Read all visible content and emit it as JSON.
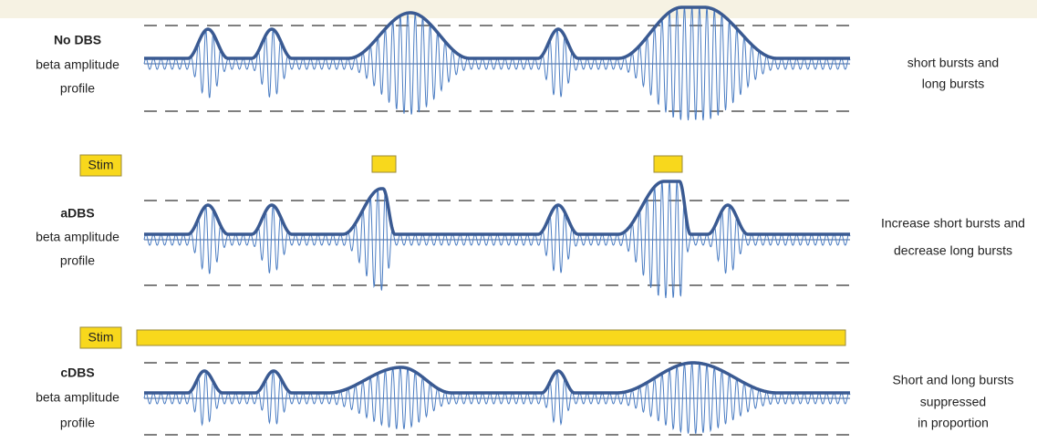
{
  "rows": [
    {
      "label": "No DBS",
      "sublabel": [
        "beta amplitude",
        "profile"
      ],
      "description": [
        "short bursts and",
        "long bursts"
      ]
    },
    {
      "label": "aDBS",
      "sublabel": [
        "beta amplitude",
        "profile"
      ],
      "description": [
        "Increase short bursts and",
        "decrease long bursts"
      ]
    },
    {
      "label": "cDBS",
      "sublabel": [
        "beta amplitude",
        "profile"
      ],
      "description": [
        "Short and long bursts",
        "suppressed",
        "in proportion"
      ]
    }
  ],
  "stim": [
    {
      "label": "Stim"
    },
    {
      "label": "Stim"
    }
  ]
}
